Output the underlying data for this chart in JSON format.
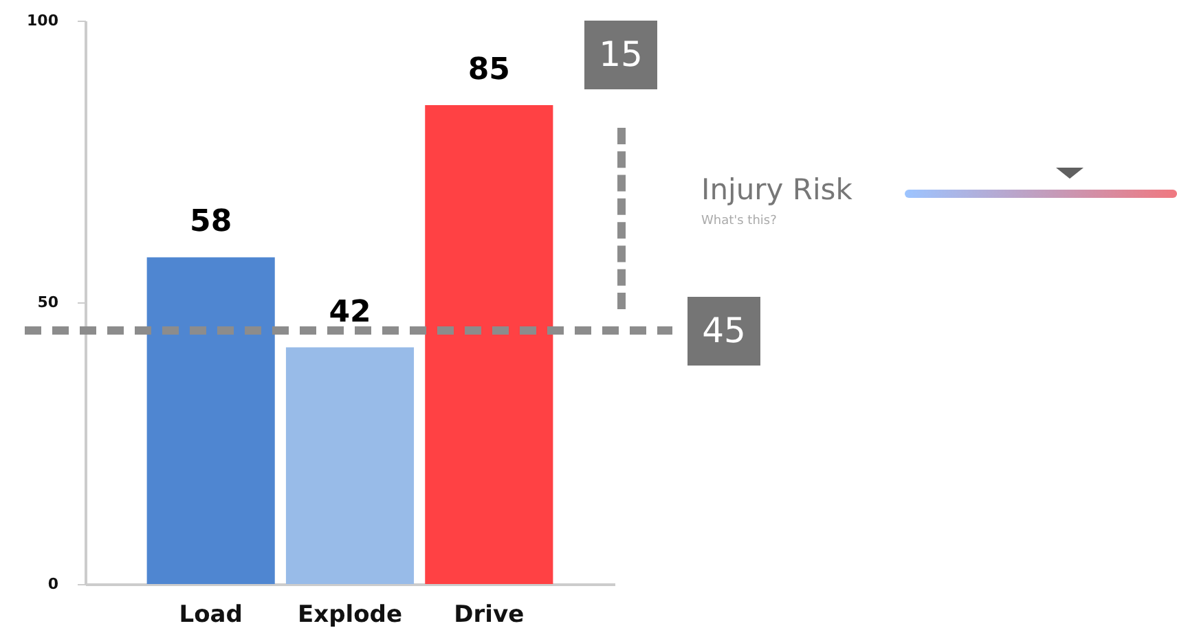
{
  "chart_data": {
    "type": "bar",
    "categories": [
      "Load",
      "Explode",
      "Drive"
    ],
    "values": [
      58,
      42,
      85
    ],
    "colors": [
      "#4f86d1",
      "#98bbe8",
      "#ff4144"
    ],
    "ylim": [
      0,
      100
    ],
    "yticks": [
      0,
      50,
      100
    ],
    "data_labels": true,
    "ref_lines": [
      {
        "axis": "y",
        "value": 45,
        "label": "45",
        "color": "#8c8c8c",
        "line_style": "dashed"
      }
    ],
    "annotations": [
      "15",
      "Injury Risk",
      "What's this?"
    ]
  }
}
